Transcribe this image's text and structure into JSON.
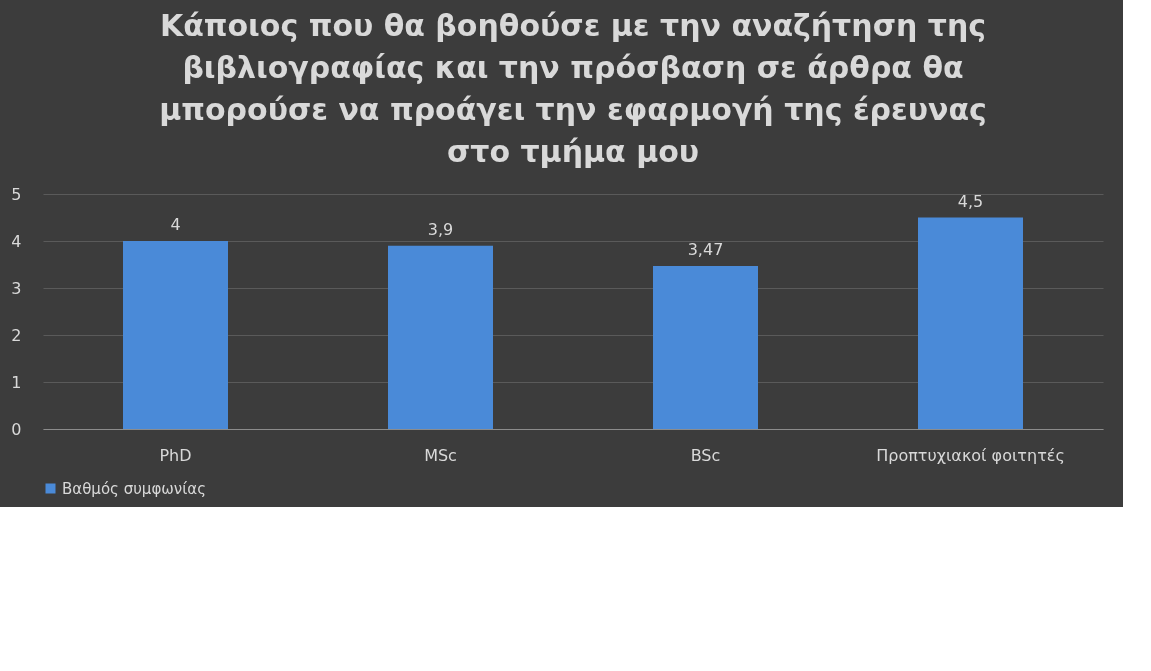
{
  "chart_data": {
    "type": "bar",
    "title": "Κάποιος που θα βοηθούσε με την αναζήτηση της βιβλιογραφίας και την πρόσβαση σε άρθρα θα μπορούσε να προάγει την εφαρμογή της έρευνας στο τμήμα μου",
    "categories": [
      "PhD",
      "MSc",
      "BSc",
      "Προπτυχιακοί φοιτητές"
    ],
    "series": [
      {
        "name": "Βαθμός συμφωνίας",
        "color": "#4a8ad8",
        "values": [
          4,
          3.9,
          3.47,
          4.5
        ],
        "value_labels": [
          "4",
          "3,9",
          "3,47",
          "4,5"
        ]
      }
    ],
    "ylim": [
      0,
      5
    ],
    "yticks": [
      0,
      1,
      2,
      3,
      4,
      5
    ],
    "grid": "y",
    "legend": "bottom"
  }
}
